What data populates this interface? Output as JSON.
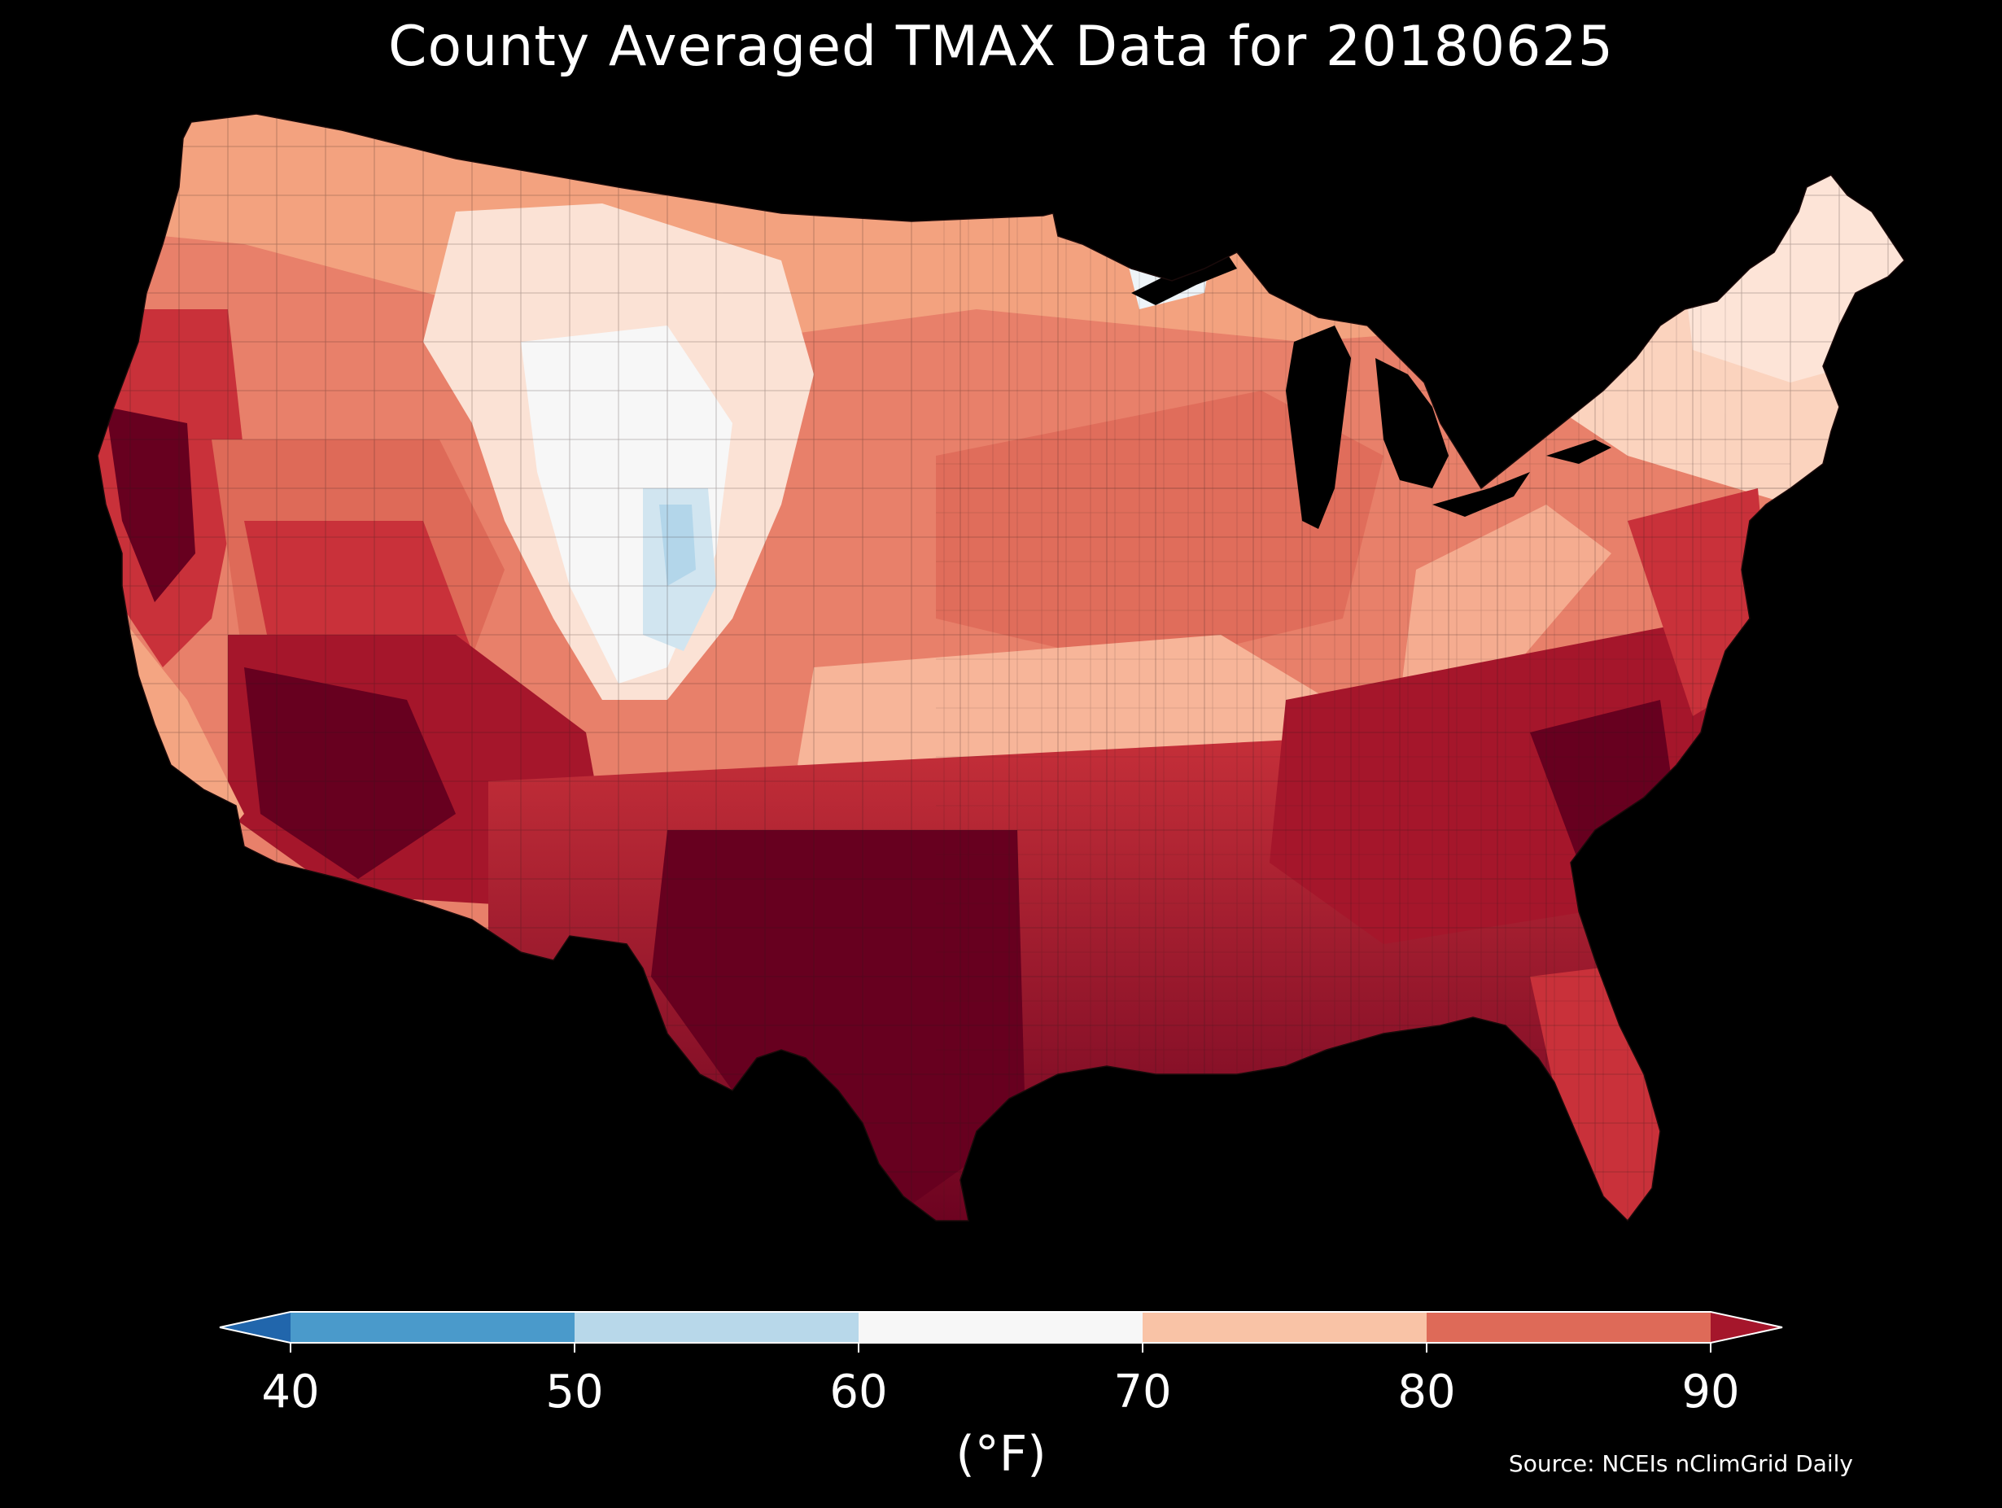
{
  "title": "County Averaged TMAX Data for 20180625",
  "source": "Source: NCEIs nClimGrid Daily",
  "colorbar": {
    "units": "(°F)",
    "ticks": [
      "40",
      "50",
      "60",
      "70",
      "80",
      "90"
    ],
    "bins": [
      {
        "range": [
          40,
          50
        ],
        "color": "#4a9acb"
      },
      {
        "range": [
          50,
          60
        ],
        "color": "#b8d8ea"
      },
      {
        "range": [
          60,
          70
        ],
        "color": "#f7f7f7"
      },
      {
        "range": [
          70,
          80
        ],
        "color": "#f9c3a6"
      },
      {
        "range": [
          80,
          90
        ],
        "color": "#de6a58"
      }
    ],
    "under_color": "#2166ac",
    "over_color": "#a5162b",
    "extend": "both"
  },
  "map": {
    "region": "Contiguous United States",
    "unit_of_aggregation": "county",
    "variable": "TMAX",
    "date": "20180625",
    "background_color": "#000000",
    "palette": {
      "very_hot": "#67001f",
      "hot": "#a5162b",
      "warm": "#c9313a",
      "mild_warm": "#de6a58",
      "mild": "#f4a582",
      "cool_warm": "#fbd3be",
      "neutral": "#f7f7f7",
      "cool": "#d1e5f0",
      "cooler": "#b3d6ea"
    }
  }
}
